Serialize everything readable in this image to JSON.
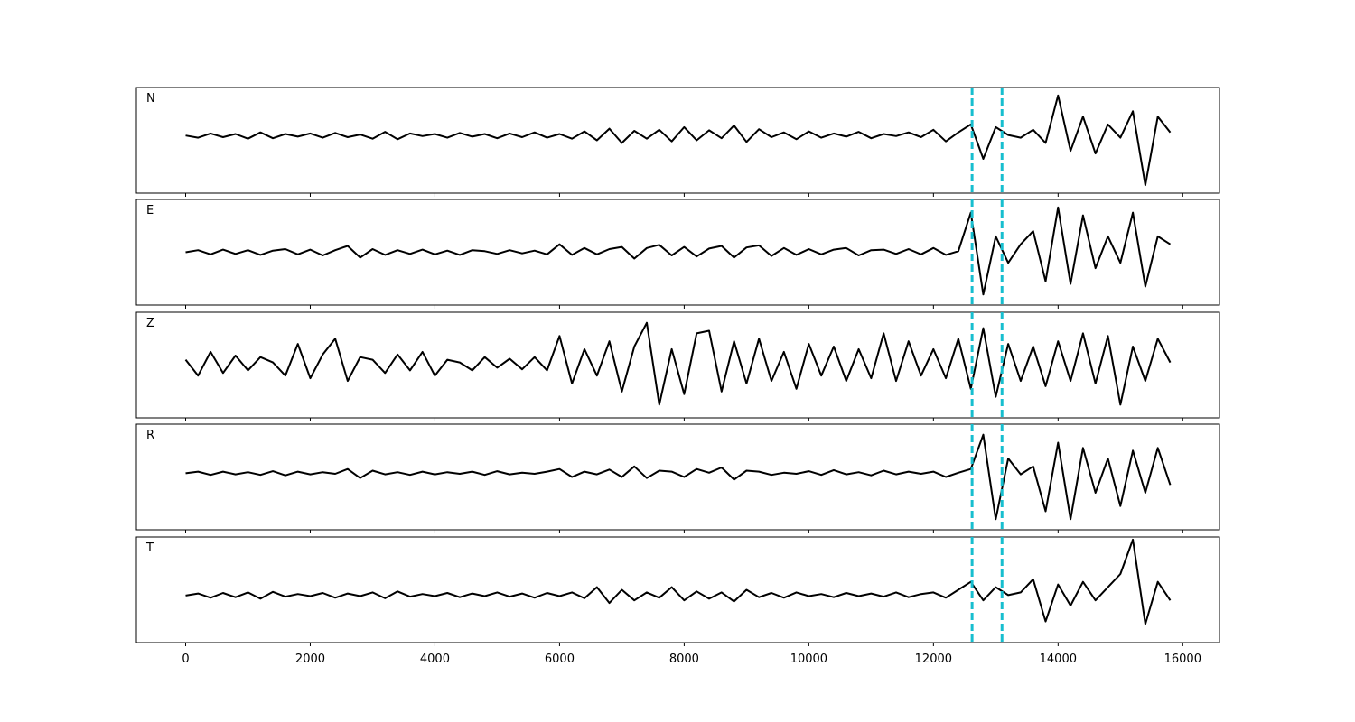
{
  "chart_data": {
    "type": "line",
    "x": [
      0,
      200,
      400,
      600,
      800,
      1000,
      1200,
      1400,
      1600,
      1800,
      2000,
      2200,
      2400,
      2600,
      2800,
      3000,
      3200,
      3400,
      3600,
      3800,
      4000,
      4200,
      4400,
      4600,
      4800,
      5000,
      5200,
      5400,
      5600,
      5800,
      6000,
      6200,
      6400,
      6600,
      6800,
      7000,
      7200,
      7400,
      7600,
      7800,
      8000,
      8200,
      8400,
      8600,
      8800,
      9000,
      9200,
      9400,
      9600,
      9800,
      10000,
      10200,
      10400,
      10600,
      10800,
      11000,
      11200,
      11400,
      11600,
      11800,
      12000,
      12200,
      12400,
      12600,
      12800,
      13000,
      13200,
      13400,
      13600,
      13800,
      14000,
      14200,
      14400,
      14600,
      14800,
      15000,
      15200,
      15400,
      15600,
      15800
    ],
    "xlim": [
      -790,
      16590
    ],
    "xticks": [
      0,
      2000,
      4000,
      6000,
      8000,
      10000,
      12000,
      14000,
      16000
    ],
    "ylim": [
      -1,
      1
    ],
    "series": [
      {
        "name": "N",
        "color": "#000000",
        "values": [
          0.09,
          0.05,
          0.13,
          0.06,
          0.12,
          0.03,
          0.15,
          0.04,
          0.12,
          0.07,
          0.13,
          0.05,
          0.14,
          0.06,
          0.11,
          0.03,
          0.16,
          0.02,
          0.13,
          0.08,
          0.12,
          0.05,
          0.14,
          0.07,
          0.12,
          0.04,
          0.13,
          0.06,
          0.15,
          0.05,
          0.12,
          0.03,
          0.17,
          0.0,
          0.22,
          -0.05,
          0.18,
          0.03,
          0.2,
          -0.02,
          0.25,
          0.0,
          0.19,
          0.04,
          0.28,
          -0.03,
          0.21,
          0.06,
          0.15,
          0.02,
          0.17,
          0.05,
          0.13,
          0.07,
          0.16,
          0.04,
          0.12,
          0.08,
          0.15,
          0.06,
          0.2,
          -0.02,
          0.15,
          0.3,
          -0.35,
          0.25,
          0.1,
          0.05,
          0.2,
          -0.05,
          0.85,
          -0.2,
          0.45,
          -0.25,
          0.3,
          0.05,
          0.55,
          -0.85,
          0.45,
          0.15
        ]
      },
      {
        "name": "E",
        "color": "#000000",
        "values": [
          0.0,
          0.04,
          -0.04,
          0.05,
          -0.03,
          0.04,
          -0.05,
          0.03,
          0.06,
          -0.04,
          0.05,
          -0.06,
          0.04,
          0.12,
          -0.1,
          0.06,
          -0.05,
          0.04,
          -0.03,
          0.05,
          -0.04,
          0.03,
          -0.05,
          0.04,
          0.02,
          -0.03,
          0.04,
          -0.02,
          0.03,
          -0.04,
          0.15,
          -0.05,
          0.08,
          -0.04,
          0.06,
          0.1,
          -0.12,
          0.08,
          0.14,
          -0.06,
          0.1,
          -0.08,
          0.07,
          0.12,
          -0.1,
          0.09,
          0.13,
          -0.07,
          0.08,
          -0.05,
          0.06,
          -0.04,
          0.05,
          0.08,
          -0.06,
          0.04,
          0.05,
          -0.03,
          0.06,
          -0.04,
          0.08,
          -0.05,
          0.02,
          0.75,
          -0.8,
          0.3,
          -0.2,
          0.15,
          0.4,
          -0.55,
          0.85,
          -0.6,
          0.7,
          -0.3,
          0.3,
          -0.2,
          0.75,
          -0.65,
          0.3,
          0.15
        ]
      },
      {
        "name": "Z",
        "color": "#000000",
        "values": [
          0.1,
          -0.2,
          0.25,
          -0.15,
          0.18,
          -0.1,
          0.15,
          0.05,
          -0.2,
          0.4,
          -0.25,
          0.2,
          0.5,
          -0.3,
          0.15,
          0.1,
          -0.15,
          0.2,
          -0.1,
          0.25,
          -0.2,
          0.1,
          0.05,
          -0.1,
          0.15,
          -0.05,
          0.12,
          -0.08,
          0.15,
          -0.1,
          0.55,
          -0.35,
          0.3,
          -0.2,
          0.45,
          -0.5,
          0.35,
          0.8,
          -0.75,
          0.3,
          -0.55,
          0.6,
          0.65,
          -0.5,
          0.45,
          -0.35,
          0.5,
          -0.3,
          0.25,
          -0.45,
          0.4,
          -0.2,
          0.35,
          -0.3,
          0.3,
          -0.25,
          0.6,
          -0.3,
          0.45,
          -0.2,
          0.3,
          -0.25,
          0.5,
          -0.45,
          0.7,
          -0.6,
          0.4,
          -0.3,
          0.35,
          -0.4,
          0.45,
          -0.3,
          0.6,
          -0.35,
          0.55,
          -0.75,
          0.35,
          -0.3,
          0.5,
          0.05
        ]
      },
      {
        "name": "R",
        "color": "#000000",
        "values": [
          0.07,
          0.1,
          0.04,
          0.1,
          0.05,
          0.09,
          0.04,
          0.11,
          0.03,
          0.1,
          0.05,
          0.09,
          0.06,
          0.15,
          -0.02,
          0.12,
          0.05,
          0.09,
          0.04,
          0.1,
          0.05,
          0.09,
          0.06,
          0.1,
          0.04,
          0.11,
          0.05,
          0.08,
          0.06,
          0.1,
          0.15,
          0.0,
          0.1,
          0.05,
          0.14,
          0.0,
          0.2,
          -0.02,
          0.12,
          0.1,
          0.0,
          0.15,
          0.08,
          0.18,
          -0.05,
          0.12,
          0.1,
          0.04,
          0.08,
          0.06,
          0.11,
          0.04,
          0.13,
          0.05,
          0.09,
          0.03,
          0.12,
          0.05,
          0.1,
          0.06,
          0.1,
          0.0,
          0.08,
          0.15,
          0.8,
          -0.8,
          0.35,
          0.05,
          0.2,
          -0.65,
          0.65,
          -0.8,
          0.55,
          -0.3,
          0.35,
          -0.55,
          0.5,
          -0.3,
          0.55,
          -0.15
        ]
      },
      {
        "name": "T",
        "color": "#000000",
        "values": [
          -0.11,
          -0.07,
          -0.15,
          -0.06,
          -0.14,
          -0.05,
          -0.17,
          -0.04,
          -0.13,
          -0.08,
          -0.12,
          -0.06,
          -0.15,
          -0.07,
          -0.12,
          -0.05,
          -0.16,
          -0.03,
          -0.13,
          -0.08,
          -0.12,
          -0.06,
          -0.14,
          -0.07,
          -0.12,
          -0.05,
          -0.13,
          -0.07,
          -0.15,
          -0.06,
          -0.12,
          -0.05,
          -0.16,
          0.05,
          -0.25,
          0.0,
          -0.2,
          -0.05,
          -0.15,
          0.05,
          -0.2,
          -0.03,
          -0.17,
          -0.05,
          -0.22,
          0.0,
          -0.14,
          -0.06,
          -0.15,
          -0.05,
          -0.12,
          -0.08,
          -0.14,
          -0.06,
          -0.12,
          -0.07,
          -0.13,
          -0.05,
          -0.14,
          -0.08,
          -0.05,
          -0.15,
          0.0,
          0.15,
          -0.2,
          0.05,
          -0.1,
          -0.05,
          0.2,
          -0.6,
          0.1,
          -0.3,
          0.15,
          -0.2,
          0.05,
          0.3,
          0.95,
          -0.65,
          0.15,
          -0.2
        ]
      }
    ],
    "vlines": {
      "values": [
        12620,
        13100
      ],
      "color": "#17becf"
    }
  }
}
